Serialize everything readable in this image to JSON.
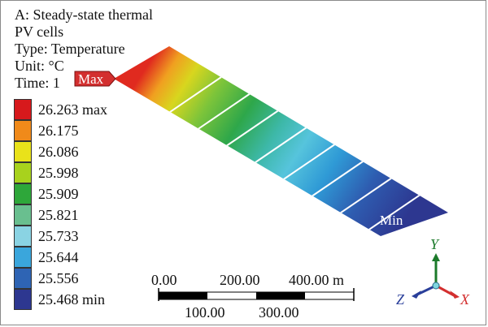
{
  "info": {
    "analysis": "A: Steady-state thermal",
    "body": "PV cells",
    "type": "Type: Temperature",
    "unit": "Unit: °C",
    "time": "Time: 1"
  },
  "legend": {
    "entries": [
      {
        "label": "26.263 max",
        "color": "#d7191c"
      },
      {
        "label": "26.175",
        "color": "#f08a1a"
      },
      {
        "label": "26.086",
        "color": "#e9e21a"
      },
      {
        "label": "25.998",
        "color": "#a8d21d"
      },
      {
        "label": "25.909",
        "color": "#2ea73a"
      },
      {
        "label": "25.821",
        "color": "#69bf8f"
      },
      {
        "label": "25.733",
        "color": "#8ad3e3"
      },
      {
        "label": "25.644",
        "color": "#3aa6dc"
      },
      {
        "label": "25.556",
        "color": "#2e64b4"
      },
      {
        "label": "25.468 min",
        "color": "#2d3790"
      }
    ]
  },
  "probes": {
    "max_label": "Max",
    "min_label": "Min",
    "max_color": "#d32f2f"
  },
  "scale_bar": {
    "top_labels": [
      "0.00",
      "200.00",
      "400.00 m"
    ],
    "bottom_labels": [
      "100.00",
      "300.00"
    ]
  },
  "triad": {
    "x_label": "X",
    "y_label": "Y",
    "z_label": "Z",
    "x_color": "#d32f2f",
    "y_color": "#1b7a2a",
    "z_color": "#2a3f9a"
  }
}
